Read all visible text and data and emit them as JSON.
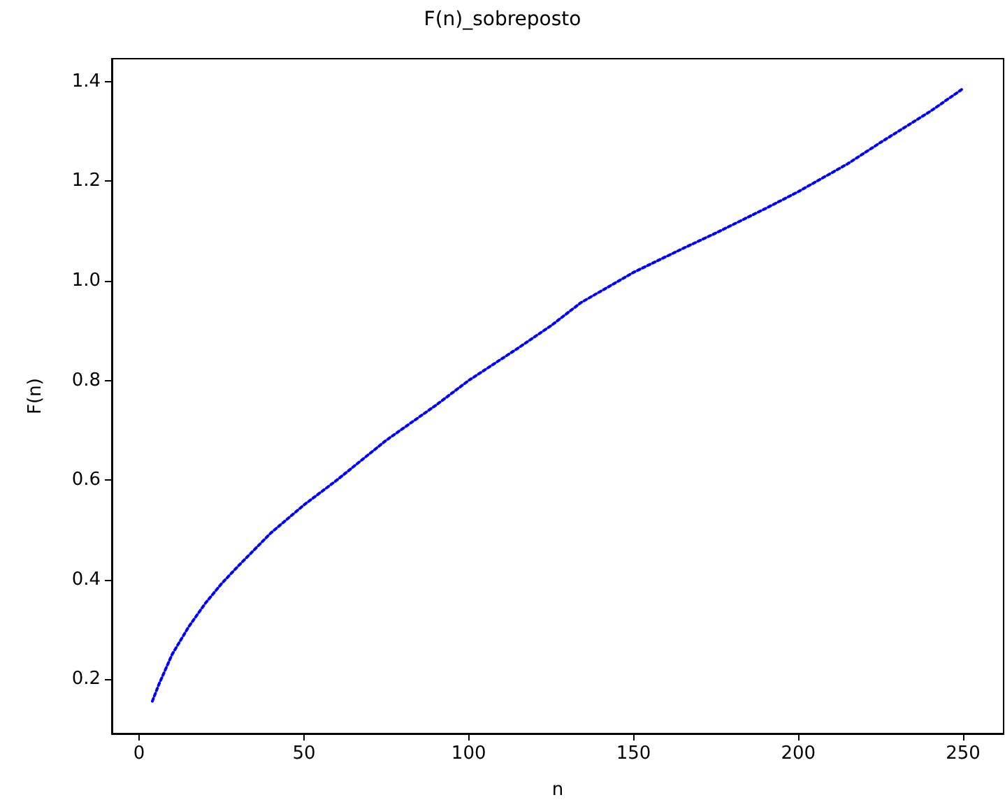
{
  "chart_data": {
    "type": "line",
    "title": "F(n)_sobreposto",
    "xlabel": "n",
    "ylabel": "F(n)",
    "x": [
      4,
      6,
      10,
      15,
      20,
      25,
      30,
      40,
      50,
      60,
      75,
      90,
      100,
      115,
      125,
      134,
      150,
      165,
      175,
      190,
      200,
      215,
      225,
      240,
      250
    ],
    "series": [
      {
        "color": "#0000ff",
        "values": [
          0.156,
          0.19,
          0.25,
          0.305,
          0.352,
          0.392,
          0.427,
          0.494,
          0.55,
          0.6,
          0.68,
          0.75,
          0.8,
          0.865,
          0.91,
          0.956,
          1.017,
          1.065,
          1.096,
          1.145,
          1.179,
          1.235,
          1.278,
          1.34,
          1.386
        ]
      }
    ],
    "xlim": [
      -8.3,
      262.3
    ],
    "xticks": [
      0,
      50,
      100,
      150,
      200,
      250
    ],
    "ylim": [
      0.091,
      1.446
    ],
    "yticks": [
      0.2,
      0.4,
      0.6,
      0.8,
      {
        "value": 1,
        "label": "1.0"
      },
      1.2,
      1.4
    ],
    "grid": false,
    "marker": "none",
    "line_style": "dotted"
  }
}
